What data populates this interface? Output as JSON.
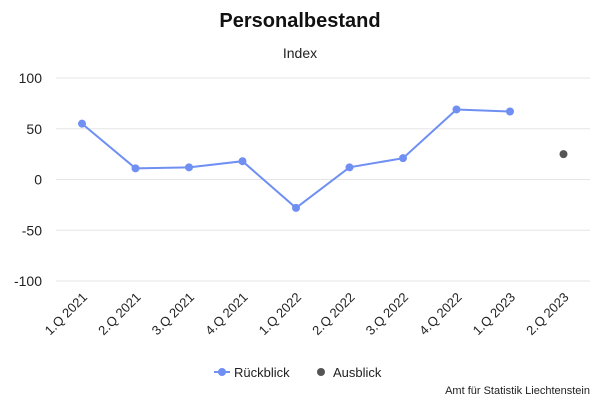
{
  "chart_data": {
    "type": "line",
    "title": "Personalbestand",
    "subtitle": "Index",
    "categories": [
      "1.Q 2021",
      "2.Q 2021",
      "3.Q 2021",
      "4.Q 2021",
      "1.Q 2022",
      "2.Q 2022",
      "3.Q 2022",
      "4.Q 2022",
      "1.Q 2023",
      "2.Q 2023"
    ],
    "ylim": [
      -100,
      100
    ],
    "yticks": [
      100,
      50,
      0,
      -50,
      -100
    ],
    "grid": true,
    "legend_position": "bottom",
    "series": [
      {
        "name": "Rückblick",
        "color": "#6f8ff2",
        "style": "line",
        "values": [
          55,
          11,
          12,
          18,
          -28,
          12,
          21,
          69,
          67,
          null
        ]
      },
      {
        "name": "Ausblick",
        "color": "#555555",
        "style": "marker",
        "values": [
          null,
          null,
          null,
          null,
          null,
          null,
          null,
          null,
          null,
          25
        ]
      }
    ]
  },
  "credit": "Amt für Statistik Liechtenstein"
}
